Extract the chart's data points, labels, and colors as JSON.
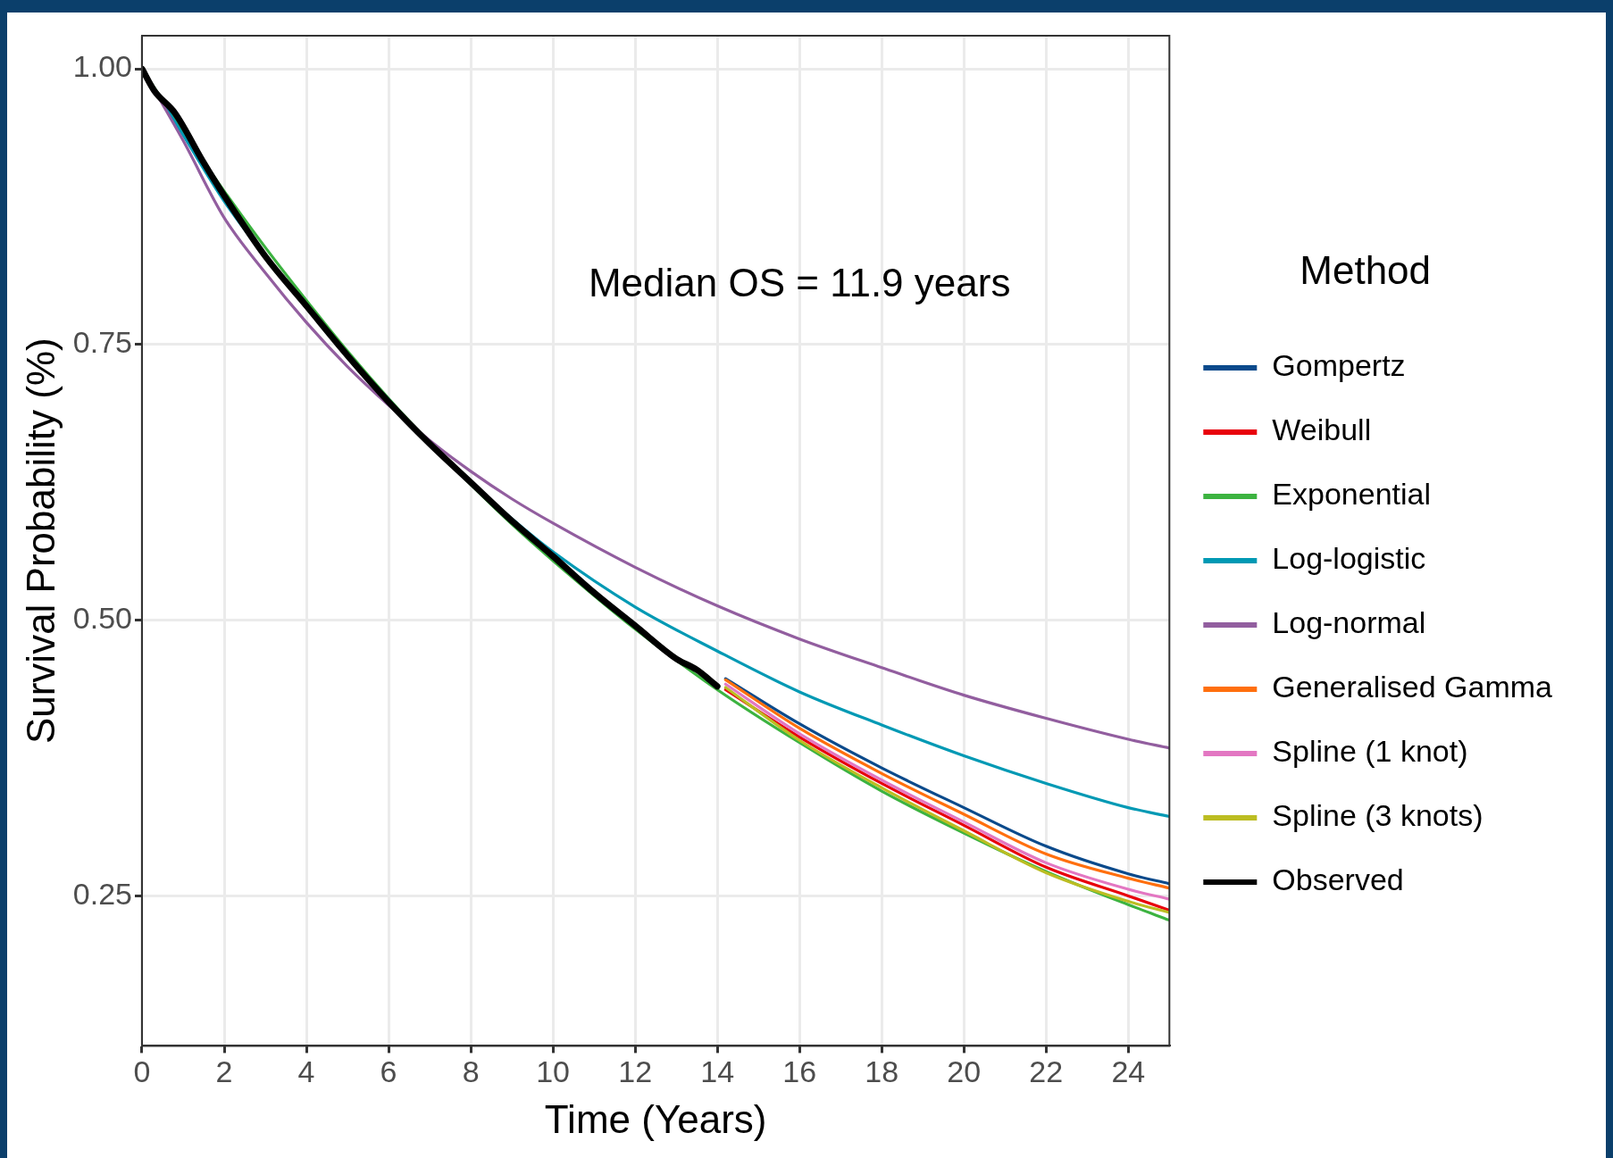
{
  "chart_data": {
    "type": "line",
    "xlabel": "Time (Years)",
    "ylabel": "Survival Probability (%)",
    "legend_title": "Method",
    "legend": "right",
    "grid": true,
    "marker": "none",
    "line_style": "solid",
    "x": [
      0,
      1,
      2,
      3,
      4,
      5,
      6,
      7,
      8,
      9,
      10,
      12,
      14,
      16,
      18,
      20,
      22,
      24,
      25
    ],
    "xlim": [
      0,
      25
    ],
    "xticks": [
      0,
      2,
      4,
      6,
      8,
      10,
      12,
      14,
      16,
      18,
      20,
      22,
      24
    ],
    "ylim": [
      0.114,
      1.03
    ],
    "yticks": [
      {
        "value": 0.25,
        "label": "0.25"
      },
      {
        "value": 0.5,
        "label": "0.50"
      },
      {
        "value": 0.75,
        "label": "0.75"
      },
      {
        "value": 1,
        "label": "1.00"
      }
    ],
    "annotations": [
      "Median OS = 11.9 years"
    ],
    "series": [
      {
        "name": "Gompertz",
        "color": "#0b4a8b",
        "x": [
          14.2,
          16,
          18,
          20,
          22,
          24,
          25
        ],
        "values": [
          0.447,
          0.406,
          0.366,
          0.33,
          0.295,
          0.27,
          0.261
        ]
      },
      {
        "name": "Weibull",
        "color": "#e8000b",
        "x": [
          14.2,
          16,
          18,
          20,
          22,
          24,
          25
        ],
        "values": [
          0.437,
          0.394,
          0.352,
          0.314,
          0.276,
          0.25,
          0.237
        ]
      },
      {
        "name": "Exponential",
        "color": "#3cb340",
        "values": [
          1,
          0.943,
          0.889,
          0.838,
          0.79,
          0.744,
          0.701,
          0.661,
          0.623,
          0.587,
          0.554,
          0.492,
          0.437,
          0.389,
          0.345,
          0.307,
          0.272,
          0.242,
          0.228
        ]
      },
      {
        "name": "Log-logistic",
        "color": "#0099b4",
        "values": [
          1,
          0.94,
          0.88,
          0.83,
          0.785,
          0.74,
          0.7,
          0.66,
          0.625,
          0.592,
          0.562,
          0.512,
          0.472,
          0.435,
          0.405,
          0.377,
          0.352,
          0.33,
          0.322
        ]
      },
      {
        "name": "Log-normal",
        "color": "#925e9f",
        "values": [
          1,
          0.935,
          0.865,
          0.815,
          0.77,
          0.73,
          0.695,
          0.663,
          0.635,
          0.61,
          0.588,
          0.548,
          0.513,
          0.483,
          0.457,
          0.432,
          0.411,
          0.392,
          0.384
        ]
      },
      {
        "name": "Generalised Gamma",
        "color": "#ff6f0e",
        "x": [
          14.2,
          16,
          18,
          20,
          22,
          24,
          25
        ],
        "values": [
          0.446,
          0.402,
          0.361,
          0.324,
          0.288,
          0.266,
          0.257
        ]
      },
      {
        "name": "Spline (1 knot)",
        "color": "#e377c2",
        "x": [
          14.2,
          16,
          18,
          20,
          22,
          24,
          25
        ],
        "values": [
          0.442,
          0.397,
          0.355,
          0.317,
          0.28,
          0.256,
          0.247
        ]
      },
      {
        "name": "Spline (3 knots)",
        "color": "#bcbd22",
        "x": [
          14.2,
          16,
          18,
          20,
          22,
          24,
          25
        ],
        "values": [
          0.439,
          0.391,
          0.348,
          0.309,
          0.271,
          0.245,
          0.235
        ]
      },
      {
        "name": "Observed",
        "color": "#000000",
        "x": [
          0,
          0.3,
          0.8,
          1.5,
          2,
          3,
          4,
          5,
          6,
          7,
          8,
          9,
          10,
          11,
          12,
          13,
          13.5,
          14
        ],
        "values": [
          1,
          0.98,
          0.96,
          0.915,
          0.885,
          0.83,
          0.785,
          0.74,
          0.698,
          0.66,
          0.625,
          0.59,
          0.558,
          0.525,
          0.495,
          0.465,
          0.455,
          0.44
        ]
      }
    ]
  }
}
